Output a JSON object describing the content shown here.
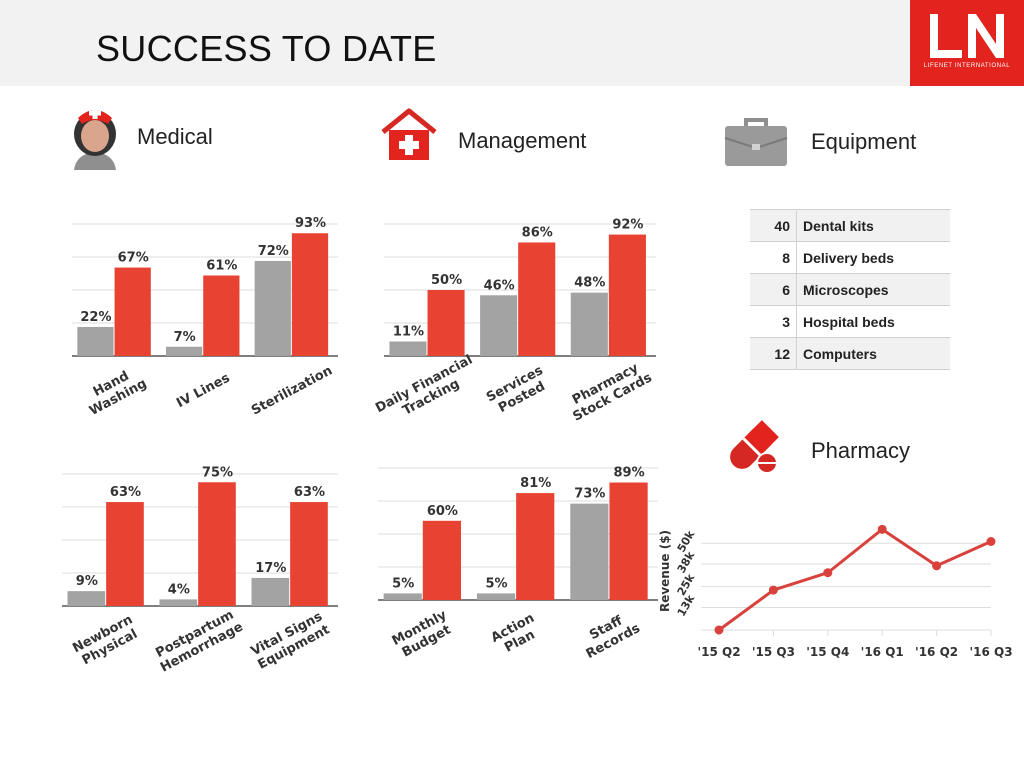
{
  "page": {
    "title": "SUCCESS TO DATE"
  },
  "logo": {
    "text": "LN",
    "subtitle": "LIFENET INTERNATIONAL"
  },
  "sections": {
    "medical": {
      "label": "Medical",
      "icon": "nurse-icon"
    },
    "management": {
      "label": "Management",
      "icon": "clinic-house-icon"
    },
    "equipment": {
      "label": "Equipment",
      "icon": "briefcase-icon"
    },
    "pharmacy": {
      "label": "Pharmacy",
      "icon": "pill-capsule-icon"
    }
  },
  "colors": {
    "before": "#a3a3a3",
    "after": "#e84233",
    "line": "#d9423c",
    "grid": "#dddddd",
    "axis": "#555555"
  },
  "chart_data": [
    {
      "id": "medical-top",
      "type": "bar",
      "categories": [
        "Hand\nWashing",
        "IV Lines",
        "Sterilization"
      ],
      "series": [
        {
          "values": [
            22,
            7,
            72
          ]
        },
        {
          "values": [
            67,
            61,
            93
          ]
        }
      ],
      "ylim": [
        0,
        100
      ],
      "grid": true
    },
    {
      "id": "management-top",
      "type": "bar",
      "categories": [
        "Daily Financial\nTracking",
        "Services\nPosted",
        "Pharmacy\nStock Cards"
      ],
      "series": [
        {
          "values": [
            11,
            46,
            48
          ]
        },
        {
          "values": [
            50,
            86,
            92
          ]
        }
      ],
      "ylim": [
        0,
        100
      ],
      "grid": true
    },
    {
      "id": "medical-bottom",
      "type": "bar",
      "categories": [
        "Newborn\nPhysical",
        "Postpartum\nHemorrhage",
        "Vital Signs\nEquipment"
      ],
      "series": [
        {
          "values": [
            9,
            4,
            17
          ]
        },
        {
          "values": [
            63,
            75,
            63
          ]
        }
      ],
      "ylim": [
        0,
        80
      ],
      "grid": true
    },
    {
      "id": "management-bottom",
      "type": "bar",
      "categories": [
        "Monthly\nBudget",
        "Action\nPlan",
        "Staff\nRecords"
      ],
      "series": [
        {
          "values": [
            5,
            5,
            73
          ]
        },
        {
          "values": [
            60,
            81,
            89
          ]
        }
      ],
      "ylim": [
        0,
        100
      ],
      "grid": true
    },
    {
      "id": "pharmacy-revenue",
      "type": "line",
      "x": [
        "'15 Q2",
        "'15 Q3",
        "'15 Q4",
        "'16 Q1",
        "'16 Q2",
        "'16 Q3"
      ],
      "series": [
        {
          "values": [
            0,
            23,
            33,
            58,
            37,
            51
          ]
        }
      ],
      "ylabel": "Revenue ($)",
      "yticks": [
        13,
        25,
        38,
        50
      ],
      "ytick_labels": [
        "13k",
        "25k",
        "38k",
        "50k"
      ],
      "ylim": [
        0,
        68
      ],
      "grid": true
    }
  ],
  "equipment_table": {
    "rows": [
      {
        "qty": "40",
        "item": "Dental kits"
      },
      {
        "qty": "8",
        "item": "Delivery beds"
      },
      {
        "qty": "6",
        "item": "Microscopes"
      },
      {
        "qty": "3",
        "item": "Hospital beds"
      },
      {
        "qty": "12",
        "item": "Computers"
      }
    ]
  }
}
